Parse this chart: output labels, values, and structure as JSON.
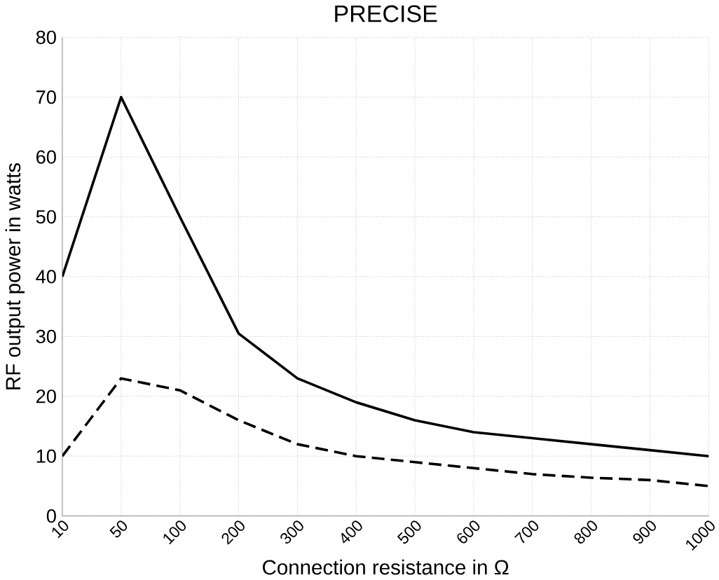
{
  "chart_data": {
    "type": "line",
    "title": "PRECISE",
    "xlabel": "Connection resistance in Ω",
    "ylabel": "RF output power in watts",
    "categories": [
      "10",
      "50",
      "100",
      "200",
      "300",
      "400",
      "500",
      "600",
      "700",
      "800",
      "900",
      "1000"
    ],
    "series": [
      {
        "color": "#000000",
        "line_style": "solid",
        "values": [
          40,
          70,
          50,
          30.5,
          23,
          19,
          16,
          14,
          13,
          12,
          11,
          10
        ]
      },
      {
        "color": "#000000",
        "line_style": "dashed",
        "values": [
          10,
          23,
          21,
          16,
          12,
          10,
          9,
          8,
          7,
          6.4,
          6,
          5
        ]
      }
    ],
    "ylim": [
      0,
      80
    ],
    "yticks": [
      0,
      10,
      20,
      30,
      40,
      50,
      60,
      70,
      80
    ],
    "grid": true,
    "marker": "none"
  }
}
